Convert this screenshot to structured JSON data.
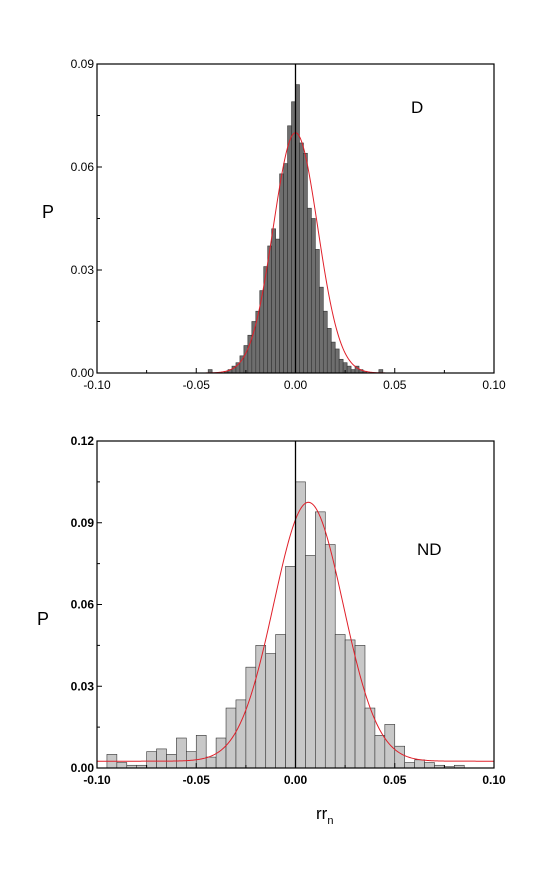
{
  "colors": {
    "panel1_bar": "#6e6e6e",
    "panel2_bar": "#c8c8c8",
    "bar_edge": "#333333",
    "fit_curve": "#e0202a",
    "axis": "#000000"
  },
  "chart_data": [
    {
      "type": "bar",
      "panel_label": "D",
      "title": "",
      "xlabel": "",
      "xlabel_sub": "",
      "ylabel": "P",
      "xlim": [
        -0.1,
        0.1
      ],
      "ylim": [
        0.0,
        0.09
      ],
      "xticks": [
        "-0.10",
        "-0.05",
        "0.00",
        "0.05",
        "0.10"
      ],
      "yticks": [
        "0.00",
        "0.03",
        "0.06",
        "0.09"
      ],
      "grid": false,
      "zero_line": true,
      "bin_width": 0.002,
      "bin_centers": [
        -0.043,
        -0.035,
        -0.033,
        -0.031,
        -0.029,
        -0.027,
        -0.025,
        -0.023,
        -0.021,
        -0.019,
        -0.017,
        -0.015,
        -0.013,
        -0.011,
        -0.009,
        -0.007,
        -0.005,
        -0.003,
        -0.001,
        0.001,
        0.003,
        0.005,
        0.007,
        0.009,
        0.011,
        0.013,
        0.015,
        0.017,
        0.019,
        0.021,
        0.023,
        0.025,
        0.027,
        0.029,
        0.031,
        0.033,
        0.035,
        0.043
      ],
      "values": [
        0.001,
        0.0005,
        0.001,
        0.002,
        0.003,
        0.005,
        0.008,
        0.011,
        0.015,
        0.018,
        0.024,
        0.031,
        0.037,
        0.042,
        0.039,
        0.058,
        0.061,
        0.072,
        0.079,
        0.084,
        0.067,
        0.064,
        0.048,
        0.045,
        0.036,
        0.025,
        0.018,
        0.013,
        0.009,
        0.007,
        0.004,
        0.003,
        0.002,
        0.001,
        0.002,
        0.001,
        0.0005,
        0.001
      ],
      "fit": {
        "type": "gaussian",
        "mean": 0.0,
        "sigma": 0.0112,
        "amplitude": 0.07,
        "baseline": 0.0
      }
    },
    {
      "type": "bar",
      "panel_label": "ND",
      "title": "",
      "xlabel": "rr",
      "xlabel_sub": "n",
      "ylabel": "P",
      "xlim": [
        -0.1,
        0.1
      ],
      "ylim": [
        0.0,
        0.12
      ],
      "xticks": [
        "-0.10",
        "-0.05",
        "0.00",
        "0.05",
        "0.10"
      ],
      "yticks": [
        "0.00",
        "0.03",
        "0.06",
        "0.09",
        "0.12"
      ],
      "grid": false,
      "zero_line": true,
      "bin_width": 0.005,
      "bin_centers": [
        -0.0925,
        -0.0875,
        -0.0825,
        -0.0775,
        -0.0725,
        -0.0675,
        -0.0625,
        -0.0575,
        -0.0525,
        -0.0475,
        -0.0425,
        -0.0375,
        -0.0325,
        -0.0275,
        -0.0225,
        -0.0175,
        -0.0125,
        -0.0075,
        -0.0025,
        0.0025,
        0.0075,
        0.0125,
        0.0175,
        0.0225,
        0.0275,
        0.0325,
        0.0375,
        0.0425,
        0.0475,
        0.0525,
        0.0575,
        0.0625,
        0.0675,
        0.0725,
        0.0775,
        0.0825
      ],
      "values": [
        0.005,
        0.002,
        0.001,
        0.001,
        0.006,
        0.007,
        0.005,
        0.011,
        0.006,
        0.012,
        0.004,
        0.011,
        0.022,
        0.025,
        0.037,
        0.045,
        0.042,
        0.049,
        0.074,
        0.105,
        0.078,
        0.094,
        0.082,
        0.049,
        0.047,
        0.045,
        0.022,
        0.012,
        0.016,
        0.008,
        0.002,
        0.003,
        0.002,
        0.001,
        0.0005,
        0.001
      ],
      "fit": {
        "type": "gaussian",
        "mean": 0.0065,
        "sigma": 0.0175,
        "amplitude": 0.095,
        "baseline": 0.0025
      }
    }
  ]
}
